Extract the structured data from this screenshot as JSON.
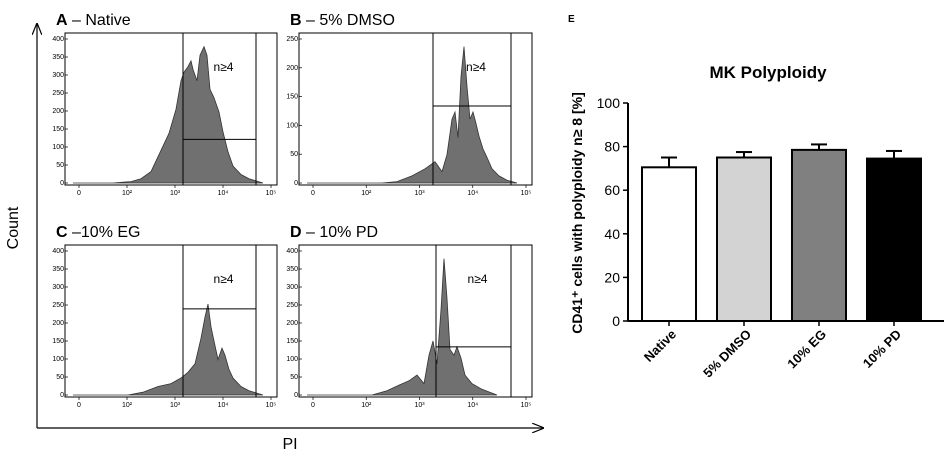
{
  "figure": {
    "axis_labels": {
      "count": "Count",
      "pi": "PI"
    }
  },
  "histograms": [
    {
      "letter": "A",
      "title": " – Native",
      "gate_label": "n≥4",
      "y_ticks": [
        "0",
        "50",
        "100",
        "150",
        "200",
        "250",
        "300",
        "350",
        "400"
      ],
      "x_ticks": [
        "0",
        "10²",
        "10³",
        "10⁴",
        "10⁵"
      ]
    },
    {
      "letter": "B",
      "title": " – 5% DMSO",
      "gate_label": "n≥4",
      "y_ticks": [
        "0",
        "50",
        "100",
        "150",
        "200",
        "250"
      ],
      "x_ticks": [
        "0",
        "10²",
        "10³",
        "10⁴",
        "10⁵"
      ]
    },
    {
      "letter": "C",
      "title": " –10% EG",
      "gate_label": "n≥4",
      "y_ticks": [
        "0",
        "50",
        "100",
        "150",
        "200",
        "250",
        "300",
        "350",
        "400"
      ],
      "x_ticks": [
        "0",
        "10²",
        "10³",
        "10⁴",
        "10⁵"
      ]
    },
    {
      "letter": "D",
      "title": " – 10% PD",
      "gate_label": "n≥4",
      "y_ticks": [
        "0",
        "50",
        "100",
        "150",
        "200",
        "250",
        "300",
        "350",
        "400"
      ],
      "x_ticks": [
        "0",
        "10²",
        "10³",
        "10⁴",
        "10⁵"
      ]
    }
  ],
  "chart_data": {
    "type": "bar",
    "panel_letter": "E",
    "title": "MK Polyploidy",
    "ylabel": "CD41⁺ cells with polyploidy n≥ 8 [%]",
    "categories": [
      "Native",
      "5% DMSO",
      "10% EG",
      "10% PD"
    ],
    "values": [
      70.5,
      75,
      78.5,
      74.5
    ],
    "errors": [
      4.5,
      2.5,
      2.5,
      3.5
    ],
    "colors": [
      "#ffffff",
      "#d3d3d3",
      "#808080",
      "#000000"
    ],
    "ylim": [
      0,
      100
    ],
    "yticks": [
      0,
      20,
      40,
      60,
      80,
      100
    ],
    "grid": false
  }
}
